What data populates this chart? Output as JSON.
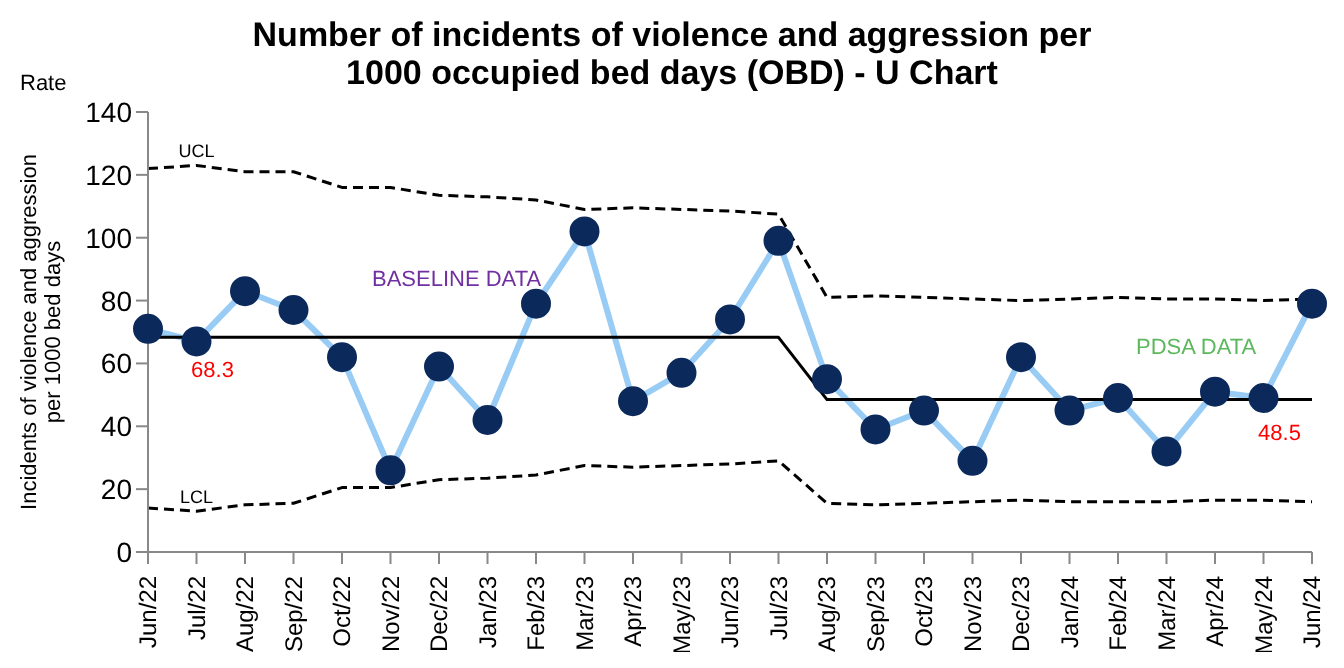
{
  "chart_data": {
    "type": "line",
    "title": "Number of incidents of violence and aggression per 1000 occupied bed days (OBD) - U Chart",
    "ylabel": "Incidents of violence and aggression per 1000 bed days",
    "categories": [
      "Jun/22",
      "Jul/22",
      "Aug/22",
      "Sep/22",
      "Oct/22",
      "Nov/22",
      "Dec/22",
      "Jan/23",
      "Feb/23",
      "Mar/23",
      "Apr/23",
      "May/23",
      "Jun/23",
      "Jul/23",
      "Aug/23",
      "Sep/23",
      "Oct/23",
      "Nov/23",
      "Dec/23",
      "Jan/24",
      "Feb/24",
      "Mar/24",
      "Apr/24",
      "May/24",
      "Jun/24"
    ],
    "series": [
      {
        "color": "#99ccf5",
        "marker": "circle",
        "line_style": "solid",
        "values": [
          71,
          67,
          83,
          77,
          62,
          26,
          59,
          42,
          79,
          102,
          48,
          57,
          74,
          99,
          55,
          39,
          45,
          29,
          62,
          45,
          49,
          32,
          51,
          49,
          79
        ]
      },
      {
        "name": "UCL",
        "color": "#000000",
        "marker": "none",
        "line_style": "dashed",
        "values": [
          122,
          123,
          121,
          121,
          116,
          116,
          113.5,
          113,
          112,
          109,
          109.5,
          109,
          108.5,
          107.5,
          81,
          81.5,
          81,
          80.5,
          80,
          80.5,
          81,
          80.5,
          80.5,
          80,
          80.5
        ]
      },
      {
        "name": "LCL",
        "color": "#000000",
        "marker": "none",
        "line_style": "dashed",
        "values": [
          14,
          13,
          15,
          15.5,
          20.5,
          20.5,
          23,
          23.5,
          24.5,
          27.5,
          27,
          27.5,
          28,
          29,
          15.5,
          15,
          15.5,
          16,
          16.5,
          16,
          16,
          16,
          16.5,
          16.5,
          16
        ]
      },
      {
        "color": "#000000",
        "marker": "none",
        "line_style": "solid",
        "values": [
          68.3,
          68.3,
          68.3,
          68.3,
          68.3,
          68.3,
          68.3,
          68.3,
          68.3,
          68.3,
          68.3,
          68.3,
          68.3,
          68.3,
          48.5,
          48.5,
          48.5,
          48.5,
          48.5,
          48.5,
          48.5,
          48.5,
          48.5,
          48.5,
          48.5
        ],
        "value_labels": [
          null,
          "68.3",
          null,
          null,
          null,
          null,
          null,
          null,
          null,
          null,
          null,
          null,
          null,
          null,
          null,
          null,
          null,
          null,
          null,
          null,
          null,
          null,
          null,
          "48.5",
          null
        ]
      }
    ],
    "ylim": [
      0,
      140
    ],
    "yticks": [
      0,
      20,
      40,
      60,
      80,
      100,
      120,
      140
    ],
    "grid": false,
    "legend": false,
    "annotations": [
      "Rate",
      "BASELINE DATA",
      "PDSA DATA"
    ]
  }
}
